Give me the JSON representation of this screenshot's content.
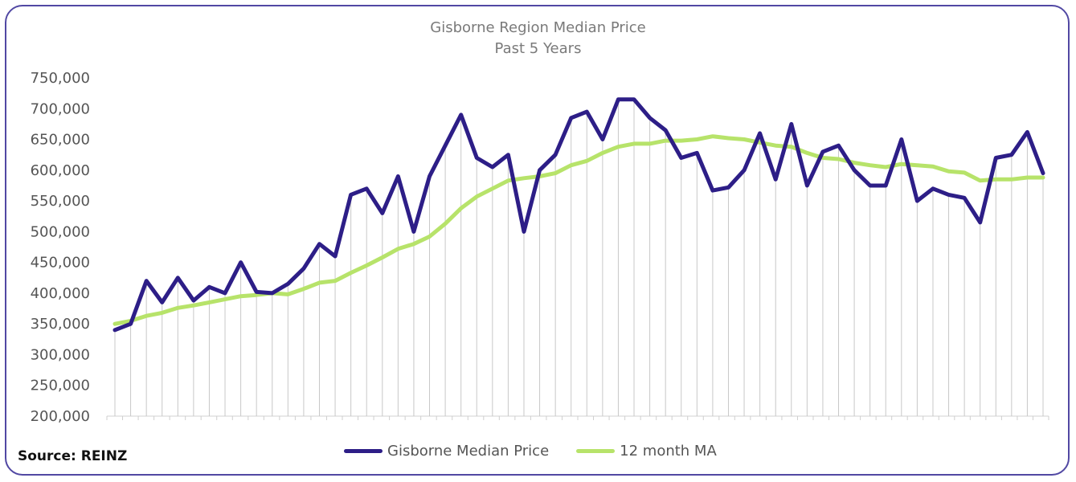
{
  "chart_data": {
    "type": "line",
    "title": "Gisborne Region Median Price",
    "subtitle": "Past 5 Years",
    "ylim": [
      200000,
      750000
    ],
    "yticks": [
      "750,000",
      "700,000",
      "650,000",
      "600,000",
      "550,000",
      "500,000",
      "450,000",
      "400,000",
      "350,000",
      "300,000",
      "250,000",
      "200,000"
    ],
    "ytick_values": [
      750000,
      700000,
      650000,
      600000,
      550000,
      500000,
      450000,
      400000,
      350000,
      300000,
      250000,
      200000
    ],
    "grid": "vertical drop lines",
    "legend": "bottom-center",
    "series": [
      {
        "name": "Gisborne Median Price",
        "color": "#2d1e87",
        "values": [
          340000,
          350000,
          420000,
          385000,
          425000,
          388000,
          410000,
          400000,
          450000,
          402000,
          400000,
          415000,
          440000,
          480000,
          460000,
          560000,
          570000,
          530000,
          590000,
          500000,
          590000,
          640000,
          690000,
          620000,
          605000,
          625000,
          500000,
          600000,
          625000,
          685000,
          695000,
          650000,
          715000,
          715000,
          685000,
          665000,
          620000,
          628000,
          567000,
          572000,
          600000,
          660000,
          585000,
          675000,
          575000,
          630000,
          640000,
          600000,
          575000,
          575000,
          650000,
          550000,
          570000,
          560000,
          555000,
          515000,
          620000,
          625000,
          662000,
          595000
        ]
      },
      {
        "name": "12 month MA",
        "color": "#b7e36a",
        "values": [
          350000,
          355000,
          363000,
          368000,
          376000,
          380000,
          385000,
          390000,
          395000,
          397000,
          400000,
          398000,
          407000,
          417000,
          420000,
          433000,
          445000,
          458000,
          472000,
          480000,
          492000,
          513000,
          538000,
          557000,
          570000,
          583000,
          587000,
          590000,
          595000,
          608000,
          615000,
          628000,
          638000,
          643000,
          643000,
          648000,
          648000,
          650000,
          655000,
          652000,
          650000,
          645000,
          640000,
          638000,
          628000,
          620000,
          618000,
          612000,
          608000,
          605000,
          610000,
          608000,
          606000,
          598000,
          596000,
          583000,
          585000,
          585000,
          588000,
          588000
        ]
      }
    ],
    "source": "Source: REINZ"
  }
}
